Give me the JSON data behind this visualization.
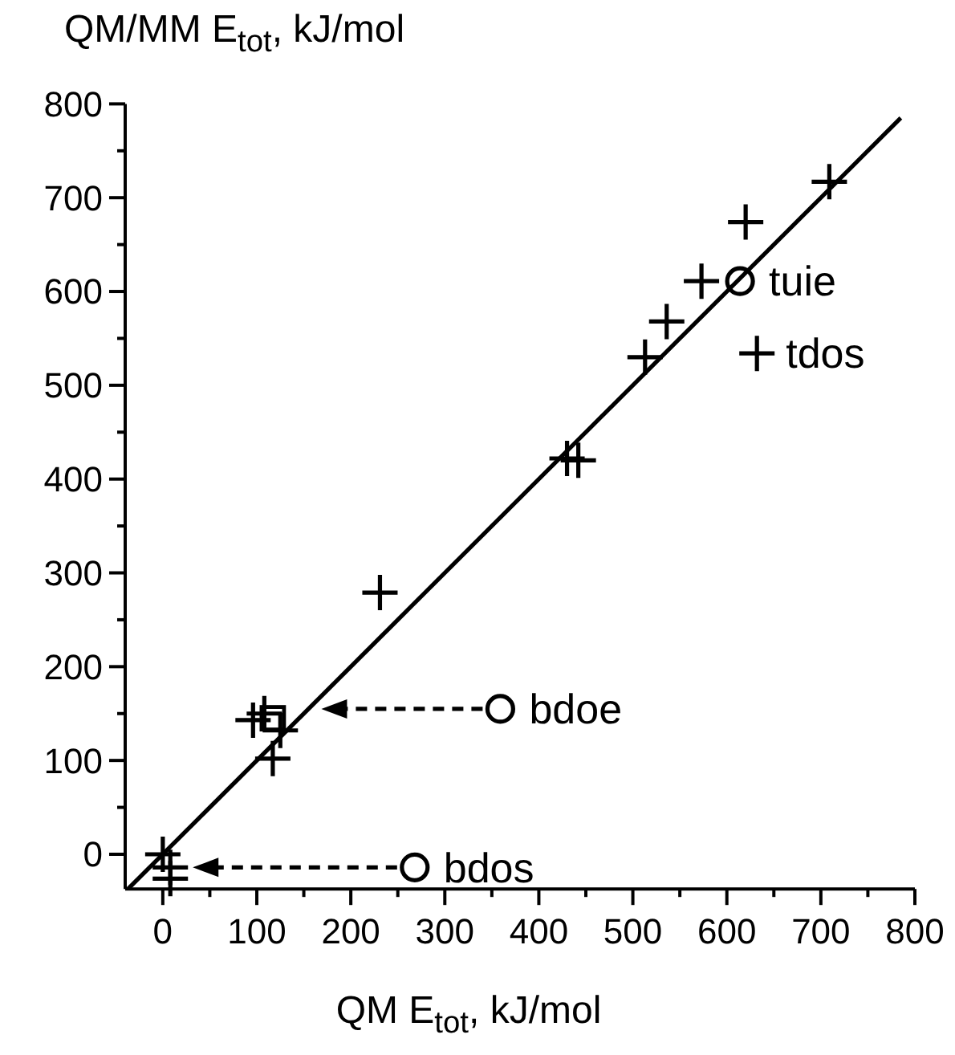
{
  "chart_data": {
    "type": "scatter",
    "xlabel": "QM E$_{tot}$, kJ/mol",
    "ylabel": "QM/MM E$_{tot}$, kJ/mol",
    "xlim": [
      -40,
      800
    ],
    "ylim": [
      -37,
      800
    ],
    "xticks": [
      0,
      {
        "value": 50,
        "label": null
      },
      100,
      {
        "value": 150,
        "label": null
      },
      200,
      {
        "value": 250,
        "label": null
      },
      300,
      {
        "value": 350,
        "label": null
      },
      400,
      {
        "value": 450,
        "label": null
      },
      500,
      {
        "value": 550,
        "label": null
      },
      600,
      {
        "value": 650,
        "label": null
      },
      700,
      {
        "value": 750,
        "label": null
      },
      800
    ],
    "yticks": [
      0,
      {
        "value": 50,
        "label": null
      },
      100,
      {
        "value": 150,
        "label": null
      },
      200,
      {
        "value": 250,
        "label": null
      },
      300,
      {
        "value": 350,
        "label": null
      },
      400,
      {
        "value": 450,
        "label": null
      },
      500,
      {
        "value": 550,
        "label": null
      },
      600,
      {
        "value": 650,
        "label": null
      },
      700,
      {
        "value": 750,
        "label": null
      },
      800
    ],
    "grid": false,
    "series": [
      {
        "type": "line",
        "color": "#000000",
        "marker": "none",
        "line_style": "solid",
        "x": [
          -37,
          785
        ],
        "values": [
          -37,
          785
        ]
      },
      {
        "color": "#000000",
        "marker": "cross",
        "x": [
          709,
          620,
          573,
          536,
          513,
          430,
          442,
          632,
          231,
          96,
          108,
          125,
          117,
          0,
          8,
          8
        ],
        "values": [
          717,
          674,
          611,
          568,
          530,
          422,
          420,
          534,
          279,
          143,
          150,
          132,
          102,
          0,
          -14,
          -26
        ]
      },
      {
        "color": "#000000",
        "marker": "square",
        "x": [
          117
        ],
        "values": [
          145
        ]
      },
      {
        "color": "#000000",
        "marker": "circle",
        "x": [
          614,
          359,
          268
        ],
        "values": [
          611,
          155,
          -14
        ]
      }
    ],
    "annotations": [
      {
        "text": "tuie",
        "x": 614,
        "y": 611
      },
      {
        "text": "tdos",
        "x": 632,
        "y": 534
      },
      {
        "text": "bdoe",
        "x": 359,
        "y": 155
      },
      {
        "text": "bdos",
        "x": 268,
        "y": -14
      }
    ]
  }
}
